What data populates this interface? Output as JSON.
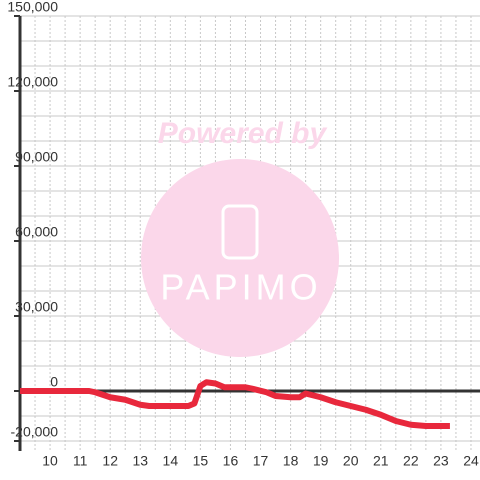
{
  "chart_data": {
    "type": "line",
    "x": [
      9,
      11.3,
      11.5,
      12,
      12.5,
      13,
      13.3,
      14,
      14.6,
      14.8,
      15,
      15.2,
      15.5,
      15.8,
      16.5,
      16.7,
      17.2,
      17.5,
      18,
      18.3,
      18.5,
      19,
      19.5,
      20,
      20.5,
      21,
      21.5,
      22,
      22.5,
      23.3
    ],
    "series": [
      {
        "color": "#e8283c",
        "values": [
          0,
          0,
          -500,
          -2500,
          -3500,
          -5500,
          -6000,
          -6000,
          -6000,
          -5000,
          2000,
          3500,
          3000,
          1500,
          1500,
          1000,
          -500,
          -2000,
          -2500,
          -2500,
          -1000,
          -2500,
          -4500,
          -6000,
          -7500,
          -9500,
          -12000,
          -13500,
          -14000,
          -14000
        ]
      }
    ],
    "xlim": [
      9,
      24.3
    ],
    "xticks": [
      10,
      11,
      12,
      13,
      14,
      15,
      16,
      17,
      18,
      19,
      20,
      21,
      22,
      23,
      24
    ],
    "xminorticks": [
      9.5,
      10.5,
      11.5,
      12.5,
      13.5,
      14.5,
      15.5,
      16.5,
      17.5,
      18.5,
      19.5,
      20.5,
      21.5,
      22.5,
      23.5
    ],
    "ylim": [
      -24000,
      150000
    ],
    "yticks": [
      {
        "value": -20000,
        "label": "-20,000"
      },
      0,
      {
        "value": 30000,
        "label": "30,000"
      },
      {
        "value": 60000,
        "label": "60,000"
      },
      {
        "value": 90000,
        "label": "90,000"
      },
      {
        "value": 120000,
        "label": "120,000"
      },
      {
        "value": 150000,
        "label": "150,000"
      }
    ],
    "yminorticks": [
      -10000,
      10000,
      20000,
      40000,
      50000,
      70000,
      80000,
      100000,
      110000,
      130000,
      140000
    ],
    "grid": true,
    "watermark": {
      "line1": "Powered by",
      "line2": "PAPIMO"
    }
  }
}
